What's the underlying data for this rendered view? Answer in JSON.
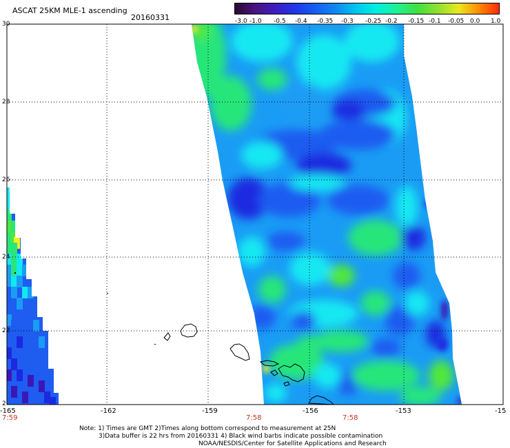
{
  "header": {
    "title": "ASCAT 25KM MLE-1 ascending",
    "date": "20160331"
  },
  "colorbar": {
    "labels": [
      "-3.0",
      "-1.0",
      "-0.5",
      "-0.4",
      "-0.35",
      "-0.3",
      "-0.25",
      "-0.2",
      "-0.15",
      "-0.1",
      "-0.05",
      "0.0",
      "1.0"
    ],
    "colors": [
      "#2a0a2e",
      "#4a1380",
      "#3a1ec0",
      "#1f37e6",
      "#1560f0",
      "#0f8af2",
      "#00c8f0",
      "#00f0e0",
      "#20f090",
      "#40e040",
      "#90e030",
      "#e8e820",
      "#ff8c00",
      "#ff2a0a"
    ]
  },
  "map": {
    "lat_labels": [
      "30",
      "28",
      "26",
      "24",
      "22",
      "2"
    ],
    "lon_labels": [
      "-165",
      "-162",
      "-159",
      "-156",
      "-153",
      "-15"
    ],
    "time_labels": [
      {
        "text": "7:59"
      },
      {
        "text": "7:58"
      },
      {
        "text": "7:58"
      }
    ],
    "swath_colors": {
      "deep_blue": "#1a2ae0",
      "blue": "#1f5cf0",
      "light_blue": "#1a9cf5",
      "cyan": "#12e8f2",
      "green": "#28e67a",
      "bright_green": "#4fe83a",
      "purple": "#3a18b8",
      "yellow": "#f2f020"
    }
  },
  "notes": {
    "line1": "Note: 1) Times are GMT  2)Times along bottom correspond to measurement at 25N",
    "line2": "3)Data buffer is 22 hrs from 20160331  4) Black wind barbs indicate possible contamination",
    "line3": "NOAA/NESDIS/Center for Satellite Applications and Research"
  }
}
